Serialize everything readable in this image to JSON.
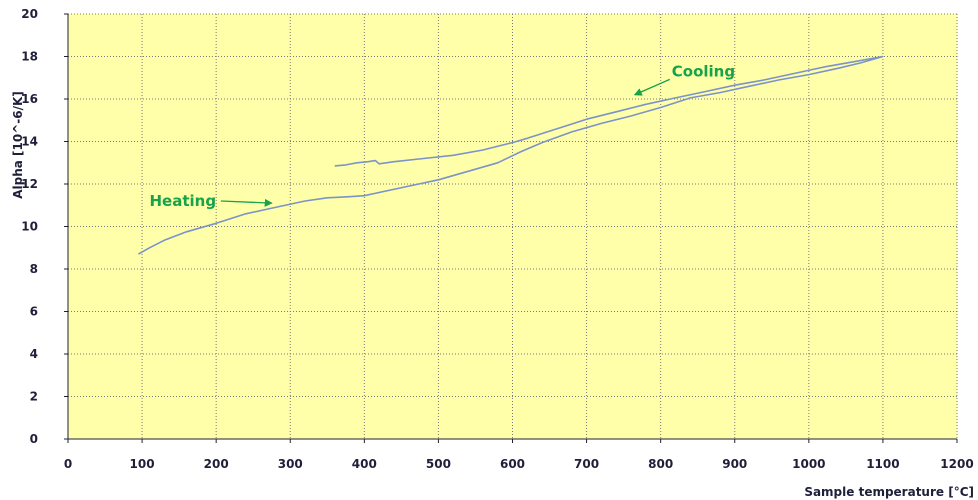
{
  "chart_data": {
    "type": "line",
    "xlabel": "Sample temperature [°C]",
    "ylabel": "Alpha [10^-6/K]",
    "xlim": [
      0,
      1200
    ],
    "ylim": [
      0,
      20
    ],
    "xticks": [
      0,
      100,
      200,
      300,
      400,
      500,
      600,
      700,
      800,
      900,
      1000,
      1100,
      1200
    ],
    "yticks": [
      0,
      2,
      4,
      6,
      8,
      10,
      12,
      14,
      16,
      18,
      20
    ],
    "grid": true,
    "colors": {
      "plot_background": "#FFFFAA",
      "line": "#7B93C8",
      "grid": "#7A7A7A",
      "annotation": "#16A34A",
      "axis_text": "#1F1F3A"
    },
    "series": [
      {
        "values": [
          [
            95,
            8.7
          ],
          [
            110,
            9.0
          ],
          [
            130,
            9.35
          ],
          [
            160,
            9.75
          ],
          [
            200,
            10.15
          ],
          [
            240,
            10.6
          ],
          [
            280,
            10.9
          ],
          [
            320,
            11.2
          ],
          [
            350,
            11.35
          ],
          [
            380,
            11.4
          ],
          [
            400,
            11.45
          ],
          [
            420,
            11.6
          ],
          [
            460,
            11.9
          ],
          [
            500,
            12.2
          ],
          [
            540,
            12.6
          ],
          [
            580,
            13.0
          ],
          [
            610,
            13.5
          ],
          [
            640,
            13.95
          ],
          [
            680,
            14.45
          ],
          [
            720,
            14.85
          ],
          [
            760,
            15.2
          ],
          [
            800,
            15.6
          ],
          [
            840,
            16.05
          ],
          [
            880,
            16.3
          ],
          [
            920,
            16.6
          ],
          [
            960,
            16.9
          ],
          [
            1000,
            17.15
          ],
          [
            1040,
            17.45
          ],
          [
            1070,
            17.7
          ],
          [
            1100,
            18.0
          ]
        ]
      },
      {
        "values": [
          [
            1100,
            18.0
          ],
          [
            1060,
            17.75
          ],
          [
            1020,
            17.5
          ],
          [
            980,
            17.2
          ],
          [
            940,
            16.9
          ],
          [
            900,
            16.65
          ],
          [
            860,
            16.35
          ],
          [
            820,
            16.05
          ],
          [
            780,
            15.75
          ],
          [
            740,
            15.4
          ],
          [
            700,
            15.05
          ],
          [
            660,
            14.6
          ],
          [
            620,
            14.15
          ],
          [
            600,
            13.95
          ],
          [
            560,
            13.6
          ],
          [
            520,
            13.35
          ],
          [
            480,
            13.2
          ],
          [
            440,
            13.05
          ],
          [
            420,
            12.95
          ],
          [
            415,
            13.1
          ],
          [
            405,
            13.05
          ],
          [
            390,
            13.0
          ],
          [
            375,
            12.9
          ],
          [
            360,
            12.85
          ]
        ]
      }
    ],
    "annotations": [
      {
        "text": "Heating",
        "x": 110,
        "y": 11.2,
        "arrow_to": [
          275,
          11.1
        ]
      },
      {
        "text": "Cooling",
        "x": 815,
        "y": 17.3,
        "arrow_to": [
          765,
          16.2
        ]
      }
    ]
  }
}
